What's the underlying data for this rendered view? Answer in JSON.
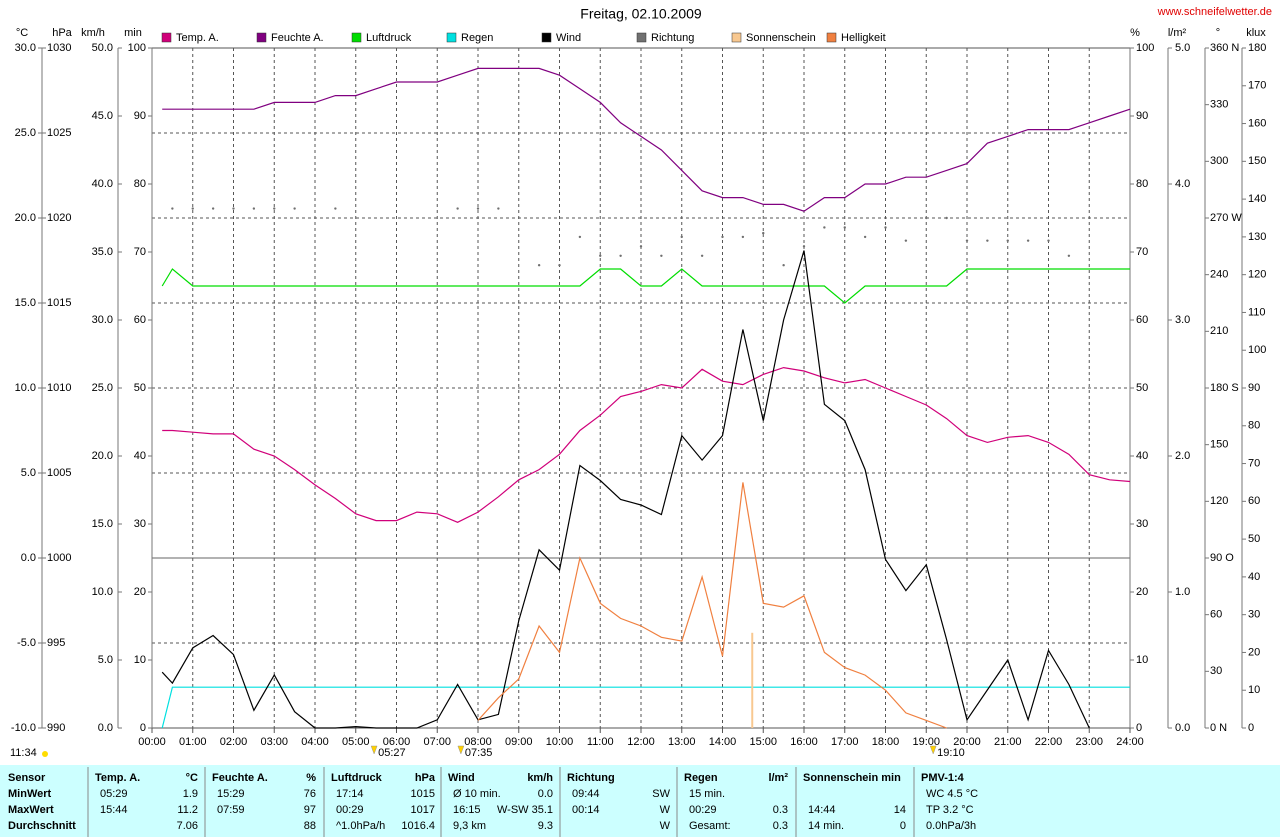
{
  "chart_data": {
    "type": "line",
    "title": "Freitag, 02.10.2009",
    "credit": "www.schneifelwetter.de",
    "legend": "top",
    "xlim": [
      0,
      24
    ],
    "xticks": [
      {
        "value": 0,
        "label": "00:00"
      },
      {
        "value": 1,
        "label": "01:00"
      },
      {
        "value": 2,
        "label": "02:00"
      },
      {
        "value": 3,
        "label": "03:00"
      },
      {
        "value": 4,
        "label": "04:00"
      },
      {
        "value": 5,
        "label": "05:00"
      },
      {
        "value": 6,
        "label": "06:00"
      },
      {
        "value": 7,
        "label": "07:00"
      },
      {
        "value": 8,
        "label": "08:00"
      },
      {
        "value": 9,
        "label": "09:00"
      },
      {
        "value": 10,
        "label": "10:00"
      },
      {
        "value": 11,
        "label": "11:00"
      },
      {
        "value": 12,
        "label": "12:00"
      },
      {
        "value": 13,
        "label": "13:00"
      },
      {
        "value": 14,
        "label": "14:00"
      },
      {
        "value": 15,
        "label": "15:00"
      },
      {
        "value": 16,
        "label": "16:00"
      },
      {
        "value": 17,
        "label": "17:00"
      },
      {
        "value": 18,
        "label": "18:00"
      },
      {
        "value": 19,
        "label": "19:00"
      },
      {
        "value": 20,
        "label": "20:00"
      },
      {
        "value": 21,
        "label": "21:00"
      },
      {
        "value": 22,
        "label": "22:00"
      },
      {
        "value": 23,
        "label": "23:00"
      },
      {
        "value": 24,
        "label": "24:00"
      }
    ],
    "xgrid": true,
    "axes": [
      {
        "unit": "°C",
        "color": "#d0007a",
        "grid": true,
        "zero_line": true,
        "lim": [
          -10,
          30
        ],
        "ticks": [
          {
            "value": -10,
            "label": "-10.0"
          },
          {
            "value": -5,
            "label": "-5.0"
          },
          {
            "value": 0,
            "label": "0.0"
          },
          {
            "value": 5,
            "label": "5.0"
          },
          {
            "value": 10,
            "label": "10.0"
          },
          {
            "value": 15,
            "label": "15.0"
          },
          {
            "value": 20,
            "label": "20.0"
          },
          {
            "value": 25,
            "label": "25.0"
          },
          {
            "value": 30,
            "label": "30.0"
          }
        ]
      },
      {
        "unit": "hPa",
        "color": "#00a000",
        "lim": [
          990,
          1030
        ],
        "ticks": [
          990,
          995,
          1000,
          1005,
          1010,
          1015,
          1020,
          1025,
          1030
        ]
      },
      {
        "unit": "km/h",
        "color": "#000000",
        "lim": [
          0,
          50
        ],
        "ticks": [
          {
            "value": 0,
            "label": "0.0"
          },
          {
            "value": 5,
            "label": "5.0"
          },
          {
            "value": 10,
            "label": "10.0"
          },
          {
            "value": 15,
            "label": "15.0"
          },
          {
            "value": 20,
            "label": "20.0"
          },
          {
            "value": 25,
            "label": "25.0"
          },
          {
            "value": 30,
            "label": "30.0"
          },
          {
            "value": 35,
            "label": "35.0"
          },
          {
            "value": 40,
            "label": "40.0"
          },
          {
            "value": 45,
            "label": "45.0"
          },
          {
            "value": 50,
            "label": "50.0"
          }
        ]
      },
      {
        "unit": "min",
        "color": "#f4c48c",
        "lim": [
          0,
          100
        ],
        "ticks": [
          0,
          10,
          20,
          30,
          40,
          50,
          60,
          70,
          80,
          90,
          100
        ]
      },
      {
        "unit": "%",
        "color": "#800080",
        "lim": [
          0,
          100
        ],
        "ticks": [
          0,
          10,
          20,
          30,
          40,
          50,
          60,
          70,
          80,
          90,
          100
        ]
      },
      {
        "unit": "l/m²",
        "color": "#00c8c8",
        "lim": [
          0,
          5
        ],
        "ticks": [
          {
            "value": 0,
            "label": "0.0"
          },
          {
            "value": 1,
            "label": "1.0"
          },
          {
            "value": 2,
            "label": "2.0"
          },
          {
            "value": 3,
            "label": "3.0"
          },
          {
            "value": 4,
            "label": "4.0"
          },
          {
            "value": 5,
            "label": "5.0"
          }
        ]
      },
      {
        "unit": "°",
        "color": "#000000",
        "lim": [
          0,
          360
        ],
        "ticks": [
          {
            "value": 0,
            "label": "0    N"
          },
          30,
          60,
          {
            "value": 90,
            "label": "90  O"
          },
          120,
          150,
          {
            "value": 180,
            "label": "180 S"
          },
          210,
          240,
          {
            "value": 270,
            "label": "270 W"
          },
          300,
          330,
          {
            "value": 360,
            "label": "360 N"
          }
        ]
      },
      {
        "unit": "klux",
        "color": "#e07030",
        "lim": [
          0,
          180
        ],
        "ticks": [
          0,
          10,
          20,
          30,
          40,
          50,
          60,
          70,
          80,
          90,
          100,
          110,
          120,
          130,
          140,
          150,
          160,
          170,
          180
        ]
      }
    ],
    "x": [
      0.25,
      0.5,
      1,
      1.5,
      2,
      2.5,
      3,
      3.5,
      4,
      4.5,
      5,
      5.5,
      6,
      6.5,
      7,
      7.5,
      8,
      8.5,
      9,
      9.5,
      10,
      10.5,
      11,
      11.5,
      12,
      12.5,
      13,
      13.5,
      14,
      14.5,
      15,
      15.5,
      16,
      16.5,
      17,
      17.5,
      18,
      18.5,
      19,
      19.5,
      20,
      20.5,
      21,
      21.5,
      22,
      22.5,
      23,
      23.5,
      24
    ],
    "series": [
      {
        "name": "Temp. A.",
        "color": "#d0007a",
        "style": "line",
        "axis": 0,
        "values": [
          7.5,
          7.5,
          7.4,
          7.3,
          7.3,
          6.4,
          6.0,
          5.2,
          4.3,
          3.5,
          2.6,
          2.2,
          2.2,
          2.7,
          2.6,
          2.1,
          2.7,
          3.6,
          4.6,
          5.2,
          6.1,
          7.5,
          8.4,
          9.5,
          9.8,
          10.2,
          10.0,
          11.1,
          10.4,
          10.2,
          10.8,
          11.2,
          11.0,
          10.6,
          10.3,
          10.5,
          10.0,
          9.5,
          9.0,
          8.2,
          7.2,
          6.8,
          7.1,
          7.2,
          6.8,
          6.1,
          4.9,
          4.6,
          4.5
        ]
      },
      {
        "name": "Feuchte A.",
        "color": "#800080",
        "style": "line",
        "axis": 4,
        "values": [
          91,
          91,
          91,
          91,
          91,
          91,
          92,
          92,
          92,
          93,
          93,
          94,
          95,
          95,
          95,
          96,
          97,
          97,
          97,
          97,
          96,
          94,
          92,
          89,
          87,
          85,
          82,
          79,
          78,
          78,
          77,
          77,
          76,
          78,
          78,
          80,
          80,
          81,
          81,
          82,
          83,
          86,
          87,
          88,
          88,
          88,
          89,
          90,
          91
        ]
      },
      {
        "name": "Luftdruck",
        "color": "#00dd00",
        "style": "line",
        "axis": 1,
        "values": [
          1016,
          1017,
          1016,
          1016,
          1016,
          1016,
          1016,
          1016,
          1016,
          1016,
          1016,
          1016,
          1016,
          1016,
          1016,
          1016,
          1016,
          1016,
          1016,
          1016,
          1016,
          1016,
          1017,
          1017,
          1016,
          1016,
          1017,
          1016,
          1016,
          1016,
          1016,
          1016,
          1016,
          1016,
          1015,
          1016,
          1016,
          1016,
          1016,
          1016,
          1017,
          1017,
          1017,
          1017,
          1017,
          1017,
          1017,
          1017,
          1017
        ]
      },
      {
        "name": "Regen",
        "color": "#00e0e0",
        "style": "line",
        "axis": 5,
        "values": [
          0,
          0.3,
          0.3,
          0.3,
          0.3,
          0.3,
          0.3,
          0.3,
          0.3,
          0.3,
          0.3,
          0.3,
          0.3,
          0.3,
          0.3,
          0.3,
          0.3,
          0.3,
          0.3,
          0.3,
          0.3,
          0.3,
          0.3,
          0.3,
          0.3,
          0.3,
          0.3,
          0.3,
          0.3,
          0.3,
          0.3,
          0.3,
          0.3,
          0.3,
          0.3,
          0.3,
          0.3,
          0.3,
          0.3,
          0.3,
          0.3,
          0.3,
          0.3,
          0.3,
          0.3,
          0.3,
          0.3,
          0.3,
          0.3
        ]
      },
      {
        "name": "Wind",
        "color": "#000000",
        "style": "line",
        "axis": 2,
        "values": [
          4.1,
          3.3,
          5.9,
          6.8,
          5.4,
          1.3,
          3.9,
          1.2,
          0,
          0,
          0.1,
          0,
          0,
          0,
          0.6,
          3.2,
          0.6,
          1.0,
          7.9,
          13.1,
          11.6,
          19.3,
          18.2,
          16.8,
          16.4,
          15.7,
          21.5,
          19.7,
          21.5,
          29.3,
          22.6,
          30.0,
          35.1,
          23.8,
          22.6,
          19.0,
          12.4,
          10.1,
          12.0,
          6.5,
          0.6,
          2.8,
          5.0,
          0.6,
          5.7,
          3.2,
          0,
          null,
          null
        ]
      },
      {
        "name": "Richtung",
        "color": "#707070",
        "style": "dots",
        "axis": 6,
        "values": [
          null,
          275,
          275,
          275,
          275,
          275,
          275,
          275,
          null,
          275,
          null,
          null,
          null,
          null,
          null,
          275,
          275,
          275,
          null,
          245,
          245,
          260,
          250,
          250,
          255,
          250,
          260,
          250,
          260,
          260,
          262,
          245,
          255,
          265,
          265,
          260,
          265,
          258,
          270,
          270,
          258,
          258,
          258,
          258,
          258,
          250,
          null,
          null,
          null
        ]
      },
      {
        "name": "Sonnenschein",
        "color": "#f8c890",
        "style": "bars",
        "axis": 3,
        "x": [
          14.73
        ],
        "values": [
          14
        ]
      },
      {
        "name": "Helligkeit",
        "color": "#f08040",
        "style": "line",
        "axis": 7,
        "values": [
          null,
          null,
          null,
          null,
          null,
          null,
          null,
          null,
          null,
          null,
          null,
          null,
          null,
          null,
          null,
          null,
          2,
          8,
          13,
          27,
          20,
          45,
          33,
          29,
          27,
          24,
          23,
          40,
          19,
          65,
          33,
          32,
          35,
          20,
          16,
          14,
          10,
          4,
          2,
          0,
          null,
          null,
          null,
          null,
          null,
          null,
          null,
          null,
          null
        ]
      }
    ],
    "day_length": "11:34",
    "sun_events": [
      {
        "value": 5.45,
        "label": "05:27"
      },
      {
        "value": 7.58,
        "label": "07:35"
      },
      {
        "value": 19.17,
        "label": "19:10"
      }
    ]
  },
  "table": {
    "groups": [
      {
        "header": "Sensor",
        "rows": [
          {
            "left": "MinWert"
          },
          {
            "left": "MaxWert"
          },
          {
            "left": "Durchschnitt"
          }
        ]
      },
      {
        "header": "Temp. A.",
        "unit": "°C",
        "rows": [
          {
            "left": "05:29",
            "right": "1.9"
          },
          {
            "left": "15:44",
            "right": "11.2"
          },
          {
            "right": "7.06"
          }
        ]
      },
      {
        "header": "Feuchte A.",
        "unit": "%",
        "rows": [
          {
            "left": "15:29",
            "right": "76"
          },
          {
            "left": "07:59",
            "right": "97"
          },
          {
            "right": "88"
          }
        ]
      },
      {
        "header": "Luftdruck",
        "unit": "hPa",
        "rows": [
          {
            "left": "17:14",
            "right": "1015"
          },
          {
            "left": "00:29",
            "right": "1017"
          },
          {
            "left": "^1.0hPa/h",
            "right": "1016.4"
          }
        ]
      },
      {
        "header": "Wind",
        "unit": "km/h",
        "rows": [
          {
            "left": "Ø 10 min.",
            "right": "0.0"
          },
          {
            "left": "16:15",
            "right": "W-SW 35.1"
          },
          {
            "left": "9,3 km",
            "right": "9.3"
          }
        ]
      },
      {
        "header": "Richtung",
        "rows": [
          {
            "left": "09:44",
            "right": "SW"
          },
          {
            "left": "00:14",
            "right": "W"
          },
          {
            "right": "W"
          }
        ]
      },
      {
        "header": "Regen",
        "unit": "l/m²",
        "rows": [
          {
            "left": "15 min."
          },
          {
            "left": "00:29",
            "right": "0.3"
          },
          {
            "left": "Gesamt:",
            "right": "0.3"
          }
        ]
      },
      {
        "header": "Sonnenschein min",
        "rows": [
          {},
          {
            "left": "14:44",
            "right": "14"
          },
          {
            "left": "14 min.",
            "right": "0"
          }
        ]
      },
      {
        "header": "PMV-1:4",
        "rows": [
          {
            "left": "WC 4.5 °C"
          },
          {
            "left": "TP 3.2 °C"
          },
          {
            "left": "0.0hPa/3h"
          }
        ]
      }
    ]
  }
}
